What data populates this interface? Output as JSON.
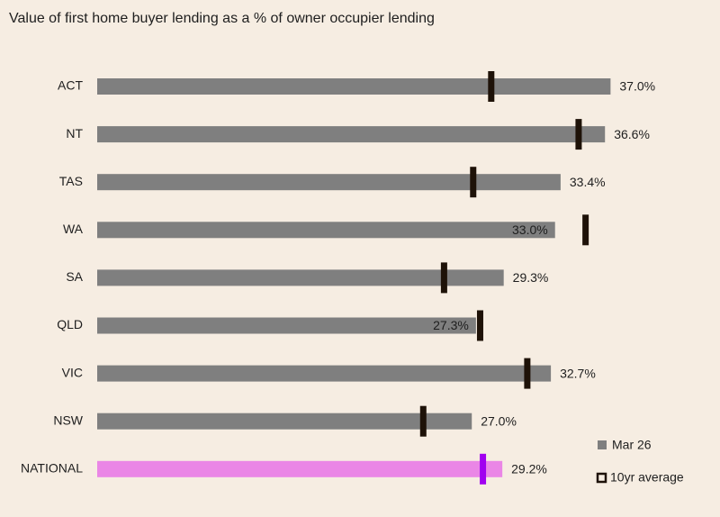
{
  "chart_data": {
    "type": "bar",
    "title": "Value of first home buyer lending as a % of owner occupier lending",
    "categories": [
      "ACT",
      "NT",
      "TAS",
      "WA",
      "SA",
      "QLD",
      "VIC",
      "NSW",
      "NATIONAL"
    ],
    "series": [
      {
        "name": "Mar 26",
        "color": "#7f7f7f",
        "colors": [
          "#7f7f7f",
          "#7f7f7f",
          "#7f7f7f",
          "#7f7f7f",
          "#7f7f7f",
          "#7f7f7f",
          "#7f7f7f",
          "#7f7f7f",
          "#ea86e6"
        ],
        "values": [
          37.0,
          36.6,
          33.4,
          33.0,
          29.3,
          27.3,
          32.7,
          27.0,
          29.2
        ],
        "value_labels": [
          "37.0%",
          "36.6%",
          "33.4%",
          "33.0%",
          "29.3%",
          "27.3%",
          "32.7%",
          "27.0%",
          "29.2%"
        ]
      },
      {
        "name": "10yr average",
        "color": "#1e1208",
        "colors": [
          "#1e1208",
          "#1e1208",
          "#1e1208",
          "#1e1208",
          "#1e1208",
          "#1e1208",
          "#1e1208",
          "#1e1208",
          "#a100f0"
        ],
        "values": [
          28.4,
          34.7,
          27.1,
          35.2,
          25.0,
          27.6,
          31.0,
          23.5,
          27.8
        ]
      }
    ],
    "xlim": [
      0,
      44.5
    ]
  }
}
